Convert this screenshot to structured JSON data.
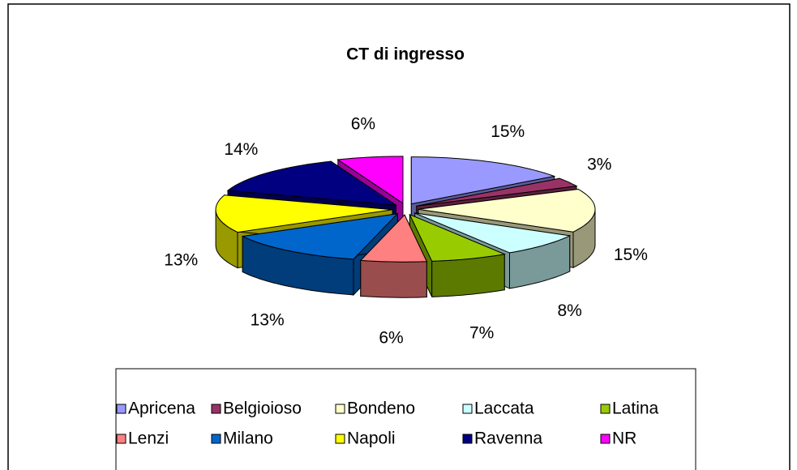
{
  "chart_data": {
    "type": "pie3d",
    "title": "CT di ingresso",
    "categories": [
      "Apricena",
      "Belgioioso",
      "Bondeno",
      "Laccata",
      "Latina",
      "Lenzi",
      "Milano",
      "Napoli",
      "Ravenna",
      "NR"
    ],
    "values": [
      15,
      3,
      15,
      8,
      7,
      6,
      13,
      13,
      14,
      6
    ],
    "value_labels": [
      "15%",
      "3%",
      "15%",
      "8%",
      "7%",
      "6%",
      "13%",
      "13%",
      "14%",
      "6%"
    ],
    "colors": [
      "#9999ff",
      "#993366",
      "#ffffcc",
      "#ccffff",
      "#99cc00",
      "#ff8080",
      "#0066cc",
      "#ffff00",
      "#000080",
      "#ff00ff"
    ],
    "legend": "bottom"
  }
}
